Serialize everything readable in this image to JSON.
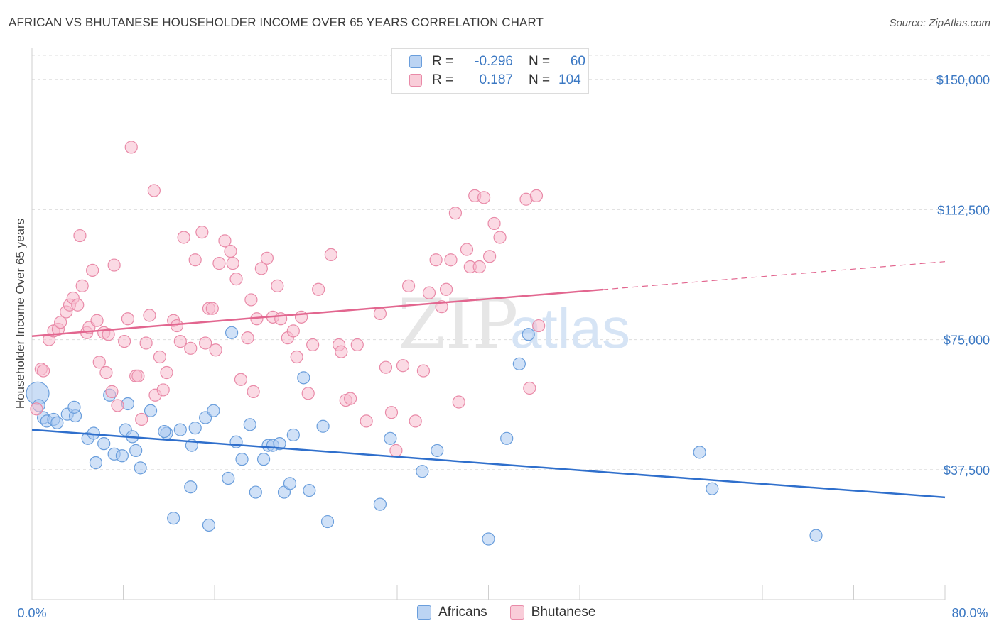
{
  "header": {
    "title": "AFRICAN VS BHUTANESE HOUSEHOLDER INCOME OVER 65 YEARS CORRELATION CHART",
    "source": "Source: ZipAtlas.com"
  },
  "watermark": {
    "part1": "ZIP",
    "part2": "atlas"
  },
  "legend": {
    "rows": [
      {
        "r_label": "R =",
        "r_value": "-0.296",
        "n_label": "N =",
        "n_value": "60"
      },
      {
        "r_label": "R =",
        "r_value": "0.187",
        "n_label": "N =",
        "n_value": "104"
      }
    ]
  },
  "bottom_legend": [
    "Africans",
    "Bhutanese"
  ],
  "colors": {
    "africans_fill": "#a9c8f0",
    "africans_stroke": "#6a9edc",
    "africans_line": "#2f6fcc",
    "bhutanese_fill": "#f7bccd",
    "bhutanese_stroke": "#e98aa8",
    "bhutanese_line": "#e2668f",
    "tick_label": "#3b78c3",
    "grid": "#dddddd"
  },
  "chart_data": {
    "type": "scatter",
    "title": "AFRICAN VS BHUTANESE HOUSEHOLDER INCOME OVER 65 YEARS CORRELATION CHART",
    "ylabel": "Householder Income Over 65 years",
    "xlim": [
      0,
      80
    ],
    "ylim": [
      0,
      157000
    ],
    "x_tick_labels": [
      "0.0%",
      "80.0%"
    ],
    "y_ticks": [
      37500,
      75000,
      112500,
      150000
    ],
    "y_tick_labels": [
      "$37,500",
      "$75,000",
      "$112,500",
      "$150,000"
    ],
    "grid": true,
    "series": [
      {
        "name": "Africans",
        "trend": {
          "x": [
            0,
            80
          ],
          "y": [
            49000,
            29500
          ],
          "dashed_from": null
        },
        "points": [
          [
            0.5,
            59500
          ],
          [
            0.6,
            56000
          ],
          [
            1,
            52500
          ],
          [
            1.3,
            51500
          ],
          [
            1.9,
            52000
          ],
          [
            2.2,
            51000
          ],
          [
            3.1,
            53500
          ],
          [
            3.8,
            53000
          ],
          [
            3.7,
            55500
          ],
          [
            4.9,
            46500
          ],
          [
            5.4,
            48000
          ],
          [
            5.6,
            39500
          ],
          [
            6.3,
            45000
          ],
          [
            7.2,
            42000
          ],
          [
            7.9,
            41500
          ],
          [
            6.8,
            59000
          ],
          [
            8.2,
            49000
          ],
          [
            8.8,
            47000
          ],
          [
            8.4,
            56500
          ],
          [
            9.1,
            43000
          ],
          [
            10.4,
            54500
          ],
          [
            9.5,
            38000
          ],
          [
            11.8,
            48000
          ],
          [
            11.6,
            48500
          ],
          [
            13,
            49000
          ],
          [
            14.3,
            49500
          ],
          [
            14,
            44500
          ],
          [
            13.9,
            32500
          ],
          [
            15.2,
            52500
          ],
          [
            15.9,
            54500
          ],
          [
            12.4,
            23500
          ],
          [
            15.5,
            21500
          ],
          [
            17.5,
            77000
          ],
          [
            17.2,
            35000
          ],
          [
            17.9,
            45500
          ],
          [
            18.4,
            40500
          ],
          [
            19.1,
            50500
          ],
          [
            19.6,
            31000
          ],
          [
            20.3,
            40500
          ],
          [
            20.7,
            44500
          ],
          [
            21.1,
            44500
          ],
          [
            21.7,
            45000
          ],
          [
            22.1,
            31000
          ],
          [
            22.6,
            33500
          ],
          [
            22.9,
            47500
          ],
          [
            23.8,
            64000
          ],
          [
            24.3,
            31500
          ],
          [
            25.5,
            50000
          ],
          [
            25.9,
            22500
          ],
          [
            30.5,
            27500
          ],
          [
            31.4,
            46500
          ],
          [
            34.2,
            37000
          ],
          [
            35.5,
            43000
          ],
          [
            40,
            17500
          ],
          [
            41.6,
            46500
          ],
          [
            42.7,
            68000
          ],
          [
            43.5,
            76500
          ],
          [
            58.5,
            42500
          ],
          [
            59.6,
            32000
          ],
          [
            68.7,
            18500
          ]
        ]
      },
      {
        "name": "Bhutanese",
        "trend": {
          "x": [
            0,
            80
          ],
          "y": [
            76000,
            97500
          ],
          "dashed_from": 50
        },
        "points": [
          [
            0.4,
            55000
          ],
          [
            0.8,
            66500
          ],
          [
            1,
            66000
          ],
          [
            1.5,
            75000
          ],
          [
            1.9,
            77500
          ],
          [
            2.3,
            78000
          ],
          [
            2.5,
            80000
          ],
          [
            3,
            83000
          ],
          [
            3.3,
            85000
          ],
          [
            3.6,
            87000
          ],
          [
            4,
            85000
          ],
          [
            4.2,
            105000
          ],
          [
            4.4,
            90500
          ],
          [
            4.8,
            77000
          ],
          [
            5,
            78500
          ],
          [
            5.3,
            95000
          ],
          [
            5.7,
            80500
          ],
          [
            5.9,
            68500
          ],
          [
            6.3,
            77000
          ],
          [
            6.7,
            76500
          ],
          [
            6.5,
            65500
          ],
          [
            7,
            60000
          ],
          [
            7.2,
            96500
          ],
          [
            7.5,
            56000
          ],
          [
            8.1,
            74500
          ],
          [
            8.4,
            81000
          ],
          [
            8.7,
            130500
          ],
          [
            9.1,
            64500
          ],
          [
            9.3,
            64500
          ],
          [
            9.6,
            52000
          ],
          [
            10,
            74000
          ],
          [
            10.3,
            82000
          ],
          [
            10.7,
            118000
          ],
          [
            10.8,
            59000
          ],
          [
            11.2,
            70000
          ],
          [
            11.5,
            60500
          ],
          [
            11.8,
            65500
          ],
          [
            12.4,
            80500
          ],
          [
            12.7,
            79000
          ],
          [
            13,
            74500
          ],
          [
            13.3,
            104500
          ],
          [
            13.9,
            72500
          ],
          [
            14.3,
            98000
          ],
          [
            14.9,
            106000
          ],
          [
            15.2,
            74000
          ],
          [
            15.5,
            84000
          ],
          [
            15.8,
            84000
          ],
          [
            16.1,
            72000
          ],
          [
            16.4,
            97000
          ],
          [
            16.9,
            103500
          ],
          [
            17.4,
            100500
          ],
          [
            17.6,
            97000
          ],
          [
            17.9,
            92500
          ],
          [
            18.3,
            63500
          ],
          [
            18.9,
            75500
          ],
          [
            19.2,
            86500
          ],
          [
            19.4,
            60000
          ],
          [
            19.7,
            81000
          ],
          [
            20.1,
            95500
          ],
          [
            20.6,
            98500
          ],
          [
            21.1,
            81500
          ],
          [
            21.5,
            90500
          ],
          [
            21.8,
            81000
          ],
          [
            22.4,
            75500
          ],
          [
            22.9,
            77500
          ],
          [
            23.2,
            70000
          ],
          [
            23.6,
            81500
          ],
          [
            24.2,
            59500
          ],
          [
            24.6,
            73500
          ],
          [
            25.1,
            89500
          ],
          [
            26.2,
            99500
          ],
          [
            26.9,
            73500
          ],
          [
            27.1,
            71500
          ],
          [
            27.5,
            57500
          ],
          [
            27.9,
            58000
          ],
          [
            28.5,
            73500
          ],
          [
            29.3,
            51500
          ],
          [
            30.5,
            82500
          ],
          [
            31,
            67000
          ],
          [
            31.5,
            54000
          ],
          [
            31.9,
            43000
          ],
          [
            32.5,
            67500
          ],
          [
            33,
            90500
          ],
          [
            33.6,
            51500
          ],
          [
            34.3,
            66000
          ],
          [
            34.8,
            88500
          ],
          [
            35.4,
            98000
          ],
          [
            35.9,
            84500
          ],
          [
            36.3,
            89500
          ],
          [
            36.7,
            98000
          ],
          [
            37.1,
            111500
          ],
          [
            37.4,
            57000
          ],
          [
            38.1,
            101000
          ],
          [
            38.4,
            96000
          ],
          [
            38.8,
            116500
          ],
          [
            39.2,
            96000
          ],
          [
            39.6,
            116000
          ],
          [
            40.1,
            99000
          ],
          [
            40.5,
            108500
          ],
          [
            41,
            104500
          ],
          [
            43.3,
            115500
          ],
          [
            43.6,
            61000
          ],
          [
            44.4,
            79000
          ],
          [
            44.2,
            116500
          ]
        ]
      }
    ]
  }
}
